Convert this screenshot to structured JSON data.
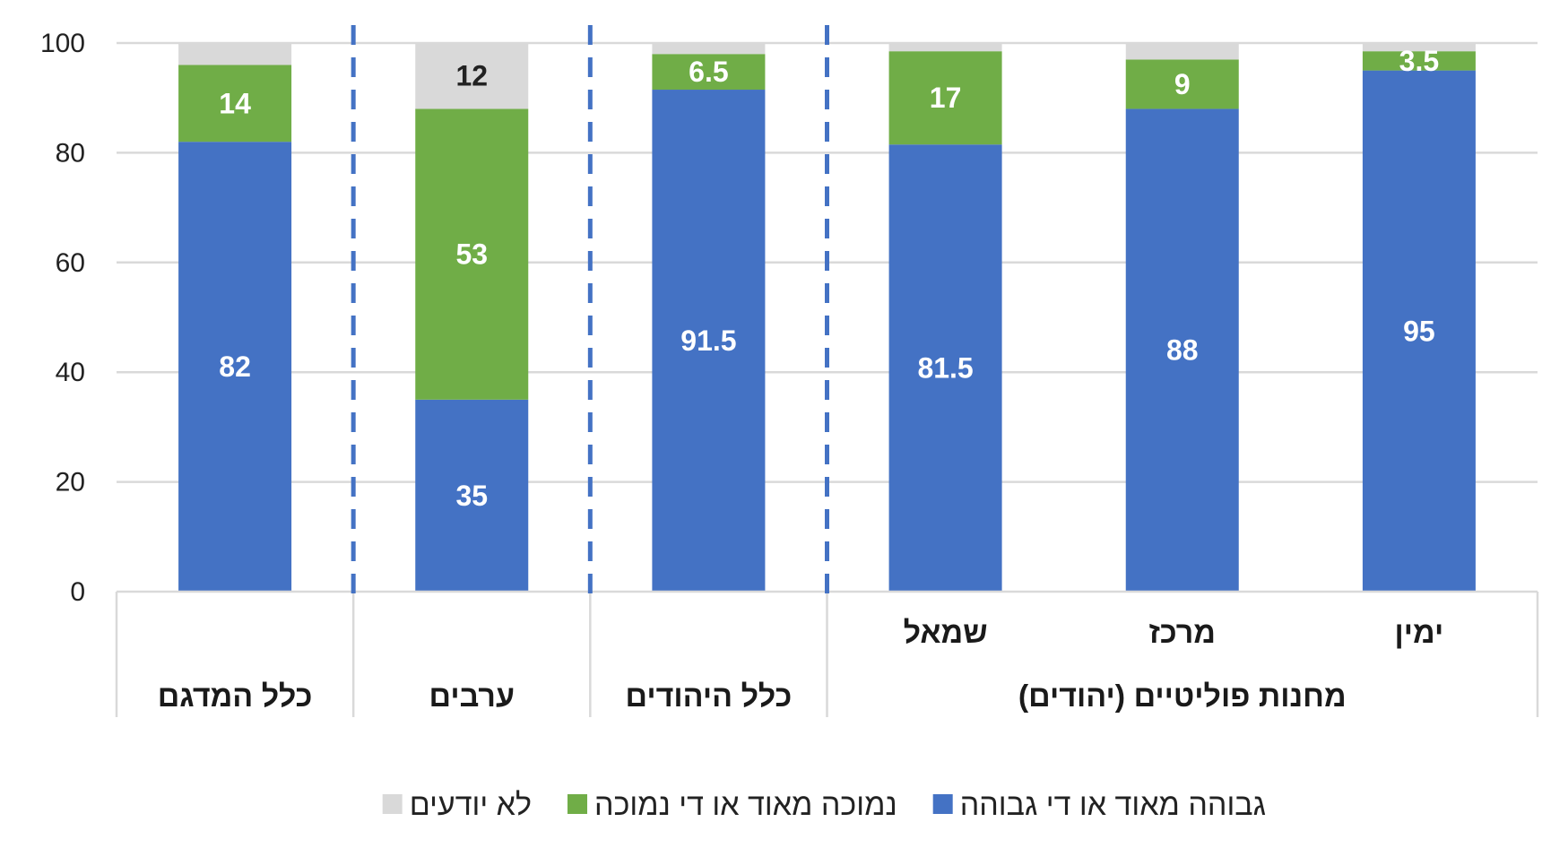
{
  "chart_data": {
    "type": "bar",
    "stacked": true,
    "ylim": [
      0,
      100
    ],
    "yticks": [
      0,
      20,
      40,
      60,
      80,
      100
    ],
    "grid": true,
    "legend_placement": "bottom",
    "categories": [
      "ימין",
      "מרכז",
      "שמאל",
      "כלל היהודים",
      "ערבים",
      "כלל המדגם"
    ],
    "groups": [
      {
        "label": "מחנות פוליטיים (יהודים)",
        "categories": [
          "ימין",
          "מרכז",
          "שמאל"
        ]
      },
      {
        "label": "כלל היהודים",
        "categories": [
          "כלל היהודים"
        ]
      },
      {
        "label": "ערבים",
        "categories": [
          "ערבים"
        ]
      },
      {
        "label": "כלל המדגם",
        "categories": [
          "כלל המדגם"
        ]
      }
    ],
    "series": [
      {
        "name": "גבוהה מאוד או די גבוהה",
        "color": "#4472C4",
        "label_color": "#ffffff",
        "values": [
          95,
          88,
          81.5,
          91.5,
          35,
          82
        ]
      },
      {
        "name": "נמוכה מאוד או די נמוכה",
        "color": "#70AD47",
        "label_color": "#ffffff",
        "values": [
          3.5,
          9,
          17,
          6.5,
          53,
          14
        ]
      },
      {
        "name": "לא יודעים",
        "color": "#D9D9D9",
        "label_color": "#222222",
        "values": [
          1.5,
          3,
          1.5,
          2,
          12,
          4
        ]
      }
    ],
    "data_labels": [
      [
        "95",
        "88",
        "81.5",
        "91.5",
        "35",
        "82"
      ],
      [
        "3.5",
        "9",
        "17",
        "6.5",
        "53",
        "14"
      ],
      [
        "",
        "",
        "",
        "",
        "12",
        ""
      ]
    ],
    "separator_style": "dashed",
    "separator_color": "#4472C4"
  }
}
